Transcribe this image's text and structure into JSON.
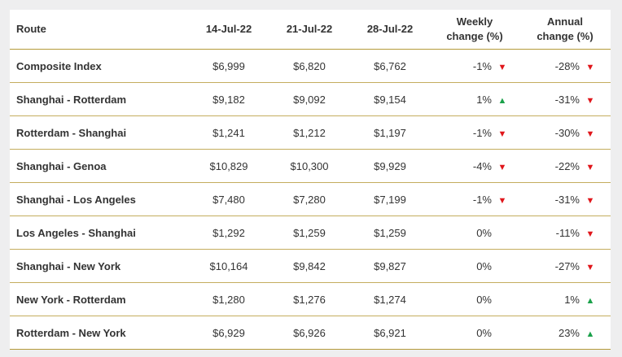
{
  "colors": {
    "down": "#e0161b",
    "up": "#1aa14a",
    "divider": "#c4ad5e"
  },
  "headers": {
    "route": "Route",
    "d1": "14-Jul-22",
    "d2": "21-Jul-22",
    "d3": "28-Jul-22",
    "weekly_line1": "Weekly",
    "weekly_line2": "change (%)",
    "annual_line1": "Annual",
    "annual_line2": "change (%)"
  },
  "rows": [
    {
      "route": "Composite Index",
      "d1": "$6,999",
      "d2": "$6,820",
      "d3": "$6,762",
      "weekly": "-1%",
      "weekly_dir": "down",
      "annual": "-28%",
      "annual_dir": "down"
    },
    {
      "route": "Shanghai - Rotterdam",
      "d1": "$9,182",
      "d2": "$9,092",
      "d3": "$9,154",
      "weekly": "1%",
      "weekly_dir": "up",
      "annual": "-31%",
      "annual_dir": "down"
    },
    {
      "route": "Rotterdam - Shanghai",
      "d1": "$1,241",
      "d2": "$1,212",
      "d3": "$1,197",
      "weekly": "-1%",
      "weekly_dir": "down",
      "annual": "-30%",
      "annual_dir": "down"
    },
    {
      "route": "Shanghai - Genoa",
      "d1": "$10,829",
      "d2": "$10,300",
      "d3": "$9,929",
      "weekly": "-4%",
      "weekly_dir": "down",
      "annual": "-22%",
      "annual_dir": "down"
    },
    {
      "route": "Shanghai - Los Angeles",
      "d1": "$7,480",
      "d2": "$7,280",
      "d3": "$7,199",
      "weekly": "-1%",
      "weekly_dir": "down",
      "annual": "-31%",
      "annual_dir": "down"
    },
    {
      "route": "Los Angeles - Shanghai",
      "d1": "$1,292",
      "d2": "$1,259",
      "d3": "$1,259",
      "weekly": "0%",
      "weekly_dir": "none",
      "annual": "-11%",
      "annual_dir": "down"
    },
    {
      "route": "Shanghai - New York",
      "d1": "$10,164",
      "d2": "$9,842",
      "d3": "$9,827",
      "weekly": "0%",
      "weekly_dir": "none",
      "annual": "-27%",
      "annual_dir": "down"
    },
    {
      "route": "New York - Rotterdam",
      "d1": "$1,280",
      "d2": "$1,276",
      "d3": "$1,274",
      "weekly": "0%",
      "weekly_dir": "none",
      "annual": "1%",
      "annual_dir": "up"
    },
    {
      "route": "Rotterdam - New York",
      "d1": "$6,929",
      "d2": "$6,926",
      "d3": "$6,921",
      "weekly": "0%",
      "weekly_dir": "none",
      "annual": "23%",
      "annual_dir": "up"
    }
  ]
}
